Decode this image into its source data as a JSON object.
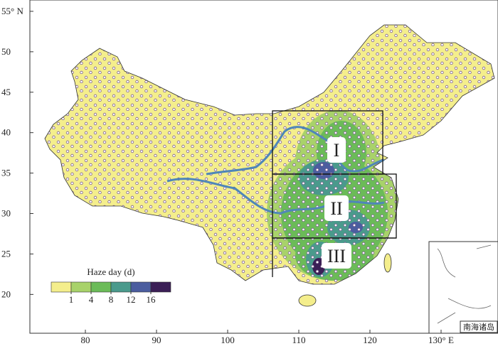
{
  "map": {
    "xlim": [
      72.2,
      138
    ],
    "ylim": [
      15.2,
      56.4
    ],
    "xticks": [
      80,
      90,
      100,
      110,
      120,
      {
        "value": 130,
        "label": "130° E"
      }
    ],
    "yticks": [
      {
        "value": 55,
        "label": "55° N"
      },
      50,
      45,
      40,
      35,
      30,
      25,
      20
    ]
  },
  "legend": {
    "title": "Haze day (d)",
    "ticks": [
      1,
      4,
      8,
      12,
      16
    ],
    "colors": [
      "#f4ee8c",
      "#a8d26a",
      "#6bbb58",
      "#4a9a8c",
      "#4b5d9f",
      "#3b1f56"
    ]
  },
  "regions": [
    {
      "label": "I"
    },
    {
      "label": "II"
    },
    {
      "label": "III"
    }
  ],
  "inset_label": "南海诸岛"
}
